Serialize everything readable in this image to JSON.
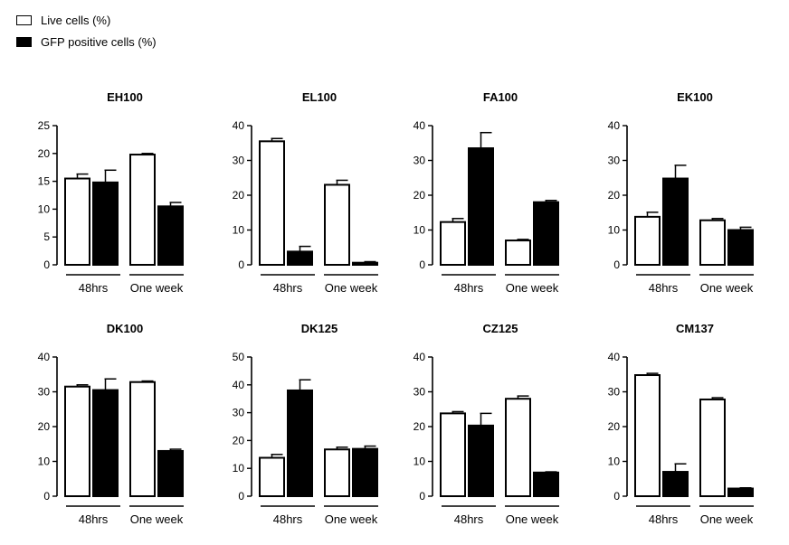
{
  "legend": {
    "items": [
      {
        "label": "Live cells (%)",
        "color": "#ffffff"
      },
      {
        "label": "GFP positive cells (%)",
        "color": "#000000"
      }
    ]
  },
  "chart_data": [
    {
      "type": "bar",
      "title": "EH100",
      "categories": [
        "48hrs",
        "One week"
      ],
      "series": [
        {
          "name": "Live cells (%)",
          "values": [
            15.5,
            19.8
          ],
          "errors": [
            0.8,
            0.2
          ]
        },
        {
          "name": "GFP positive cells (%)",
          "values": [
            14.8,
            10.5
          ],
          "errors": [
            2.2,
            0.7
          ]
        }
      ],
      "ylim": [
        0,
        25
      ],
      "yticks": [
        0,
        5,
        10,
        15,
        20,
        25
      ]
    },
    {
      "type": "bar",
      "title": "EL100",
      "categories": [
        "48hrs",
        "One week"
      ],
      "series": [
        {
          "name": "Live cells (%)",
          "values": [
            35.5,
            23
          ],
          "errors": [
            0.8,
            1.3
          ]
        },
        {
          "name": "GFP positive cells (%)",
          "values": [
            3.8,
            0.6
          ],
          "errors": [
            1.5,
            0.3
          ]
        }
      ],
      "ylim": [
        0,
        40
      ],
      "yticks": [
        0,
        10,
        20,
        30,
        40
      ]
    },
    {
      "type": "bar",
      "title": "FA100",
      "categories": [
        "48hrs",
        "One week"
      ],
      "series": [
        {
          "name": "Live cells (%)",
          "values": [
            12.3,
            7.0
          ],
          "errors": [
            1.0,
            0.3
          ]
        },
        {
          "name": "GFP positive cells (%)",
          "values": [
            33.5,
            18.0
          ],
          "errors": [
            4.5,
            0.5
          ]
        }
      ],
      "ylim": [
        0,
        40
      ],
      "yticks": [
        0,
        10,
        20,
        30,
        40
      ]
    },
    {
      "type": "bar",
      "title": "EK100",
      "categories": [
        "48hrs",
        "One week"
      ],
      "series": [
        {
          "name": "Live cells (%)",
          "values": [
            13.8,
            12.8
          ],
          "errors": [
            1.3,
            0.5
          ]
        },
        {
          "name": "GFP positive cells (%)",
          "values": [
            24.8,
            10.0
          ],
          "errors": [
            3.8,
            0.8
          ]
        }
      ],
      "ylim": [
        0,
        40
      ],
      "yticks": [
        0,
        10,
        20,
        30,
        40
      ]
    },
    {
      "type": "bar",
      "title": "DK100",
      "categories": [
        "48hrs",
        "One week"
      ],
      "series": [
        {
          "name": "Live cells (%)",
          "values": [
            31.5,
            32.8
          ],
          "errors": [
            0.5,
            0.3
          ]
        },
        {
          "name": "GFP positive cells (%)",
          "values": [
            30.5,
            13.0
          ],
          "errors": [
            3.2,
            0.5
          ]
        }
      ],
      "ylim": [
        0,
        40
      ],
      "yticks": [
        0,
        10,
        20,
        30,
        40
      ]
    },
    {
      "type": "bar",
      "title": "DK125",
      "categories": [
        "48hrs",
        "One week"
      ],
      "series": [
        {
          "name": "Live cells (%)",
          "values": [
            13.8,
            16.8
          ],
          "errors": [
            1.2,
            0.8
          ]
        },
        {
          "name": "GFP positive cells (%)",
          "values": [
            38.0,
            17.0
          ],
          "errors": [
            3.8,
            1.0
          ]
        }
      ],
      "ylim": [
        0,
        50
      ],
      "yticks": [
        0,
        10,
        20,
        30,
        40,
        50
      ]
    },
    {
      "type": "bar",
      "title": "CZ125",
      "categories": [
        "48hrs",
        "One week"
      ],
      "series": [
        {
          "name": "Live cells (%)",
          "values": [
            23.8,
            28.0
          ],
          "errors": [
            0.5,
            0.8
          ]
        },
        {
          "name": "GFP positive cells (%)",
          "values": [
            20.3,
            6.8
          ],
          "errors": [
            3.5,
            0.2
          ]
        }
      ],
      "ylim": [
        0,
        40
      ],
      "yticks": [
        0,
        10,
        20,
        30,
        40
      ]
    },
    {
      "type": "bar",
      "title": "CM137",
      "categories": [
        "48hrs",
        "One week"
      ],
      "series": [
        {
          "name": "Live cells (%)",
          "values": [
            34.8,
            27.8
          ],
          "errors": [
            0.5,
            0.5
          ]
        },
        {
          "name": "GFP positive cells (%)",
          "values": [
            7.0,
            2.2
          ],
          "errors": [
            2.3,
            0.2
          ]
        }
      ],
      "ylim": [
        0,
        40
      ],
      "yticks": [
        0,
        10,
        20,
        30,
        40
      ]
    }
  ]
}
